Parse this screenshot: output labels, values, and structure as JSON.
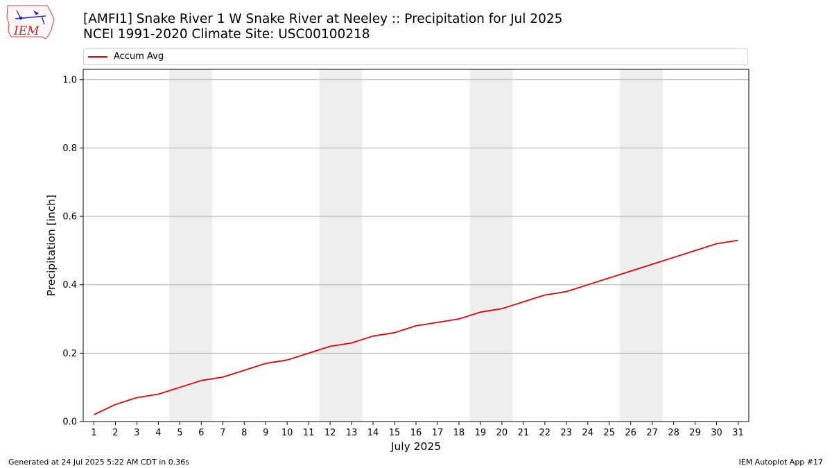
{
  "header": {
    "title_line1": "[AMFI1] Snake River 1 W Snake River at Neeley :: Precipitation for Jul 2025",
    "title_line2": "NCEI 1991-2020 Climate Site: USC00100218",
    "logo_text": "IEM"
  },
  "footer": {
    "generated": "Generated at 24 Jul 2025 5:22 AM CDT in 0.36s",
    "app": "IEM Autoplot App #17"
  },
  "chart_data": {
    "type": "line",
    "xlabel": "July 2025",
    "ylabel": "Precipitation [inch]",
    "ylim": [
      0.0,
      1.03
    ],
    "xlim": [
      0.5,
      31.5
    ],
    "yticks": [
      "0.0",
      "0.2",
      "0.4",
      "0.6",
      "0.8",
      "1.0"
    ],
    "ytick_values": [
      0.0,
      0.2,
      0.4,
      0.6,
      0.8,
      1.0
    ],
    "x": [
      1,
      2,
      3,
      4,
      5,
      6,
      7,
      8,
      9,
      10,
      11,
      12,
      13,
      14,
      15,
      16,
      17,
      18,
      19,
      20,
      21,
      22,
      23,
      24,
      25,
      26,
      27,
      28,
      29,
      30,
      31
    ],
    "grid": "horizontal",
    "legend_position": "top",
    "weekend_shading": [
      [
        5,
        6
      ],
      [
        12,
        13
      ],
      [
        19,
        20
      ],
      [
        26,
        27
      ]
    ],
    "colors": {
      "line": "#ee0000",
      "shading": "#eeeeee",
      "grid": "#b0b0b0"
    },
    "series": [
      {
        "name": "Accum Avg",
        "values": [
          0.02,
          0.05,
          0.07,
          0.08,
          0.1,
          0.12,
          0.13,
          0.15,
          0.17,
          0.18,
          0.2,
          0.22,
          0.23,
          0.25,
          0.26,
          0.28,
          0.29,
          0.3,
          0.32,
          0.33,
          0.35,
          0.37,
          0.38,
          0.4,
          0.42,
          0.44,
          0.46,
          0.48,
          0.5,
          0.52,
          0.53
        ]
      }
    ]
  }
}
